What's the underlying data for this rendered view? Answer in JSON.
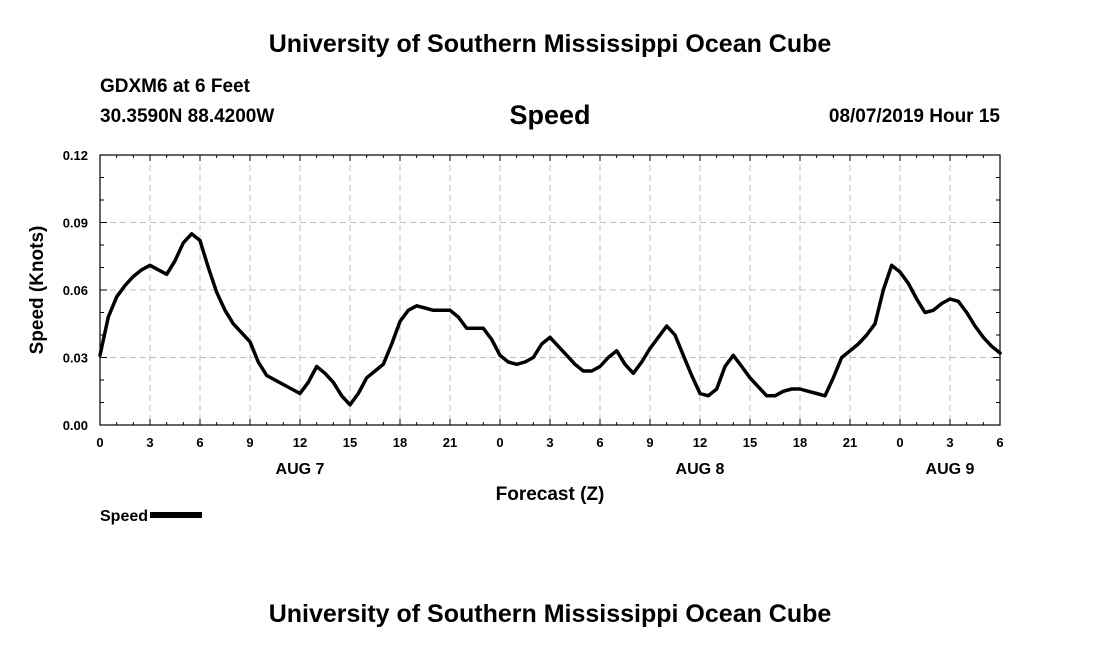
{
  "header": {
    "title": "University of Southern Mississippi Ocean Cube",
    "station": "GDXM6 at 6 Feet",
    "coords": "30.3590N 88.4200W",
    "datetime": "08/07/2019 Hour 15"
  },
  "footer": {
    "title": "University of Southern Mississippi Ocean Cube"
  },
  "legend": {
    "label": "Speed"
  },
  "chart_data": {
    "type": "line",
    "title": "Speed",
    "xlabel": "Forecast (Z)",
    "ylabel": "Speed (Knots)",
    "xlim": [
      0,
      54
    ],
    "ylim": [
      0,
      0.12
    ],
    "grid": true,
    "legend_position": "bottom-left",
    "yticks": [
      "0.00",
      "0.03",
      "0.06",
      "0.09",
      "0.12"
    ],
    "xticks": [
      "0",
      "3",
      "6",
      "9",
      "12",
      "15",
      "18",
      "21",
      "0",
      "3",
      "6",
      "9",
      "12",
      "15",
      "18",
      "21",
      "0",
      "3",
      "6"
    ],
    "day_labels": [
      {
        "label": "AUG 7",
        "x": 12
      },
      {
        "label": "AUG 8",
        "x": 36
      },
      {
        "label": "AUG 9",
        "x": 51
      }
    ],
    "series": [
      {
        "name": "Speed",
        "color": "#000000",
        "x": [
          0,
          0.5,
          1,
          1.5,
          2,
          2.5,
          3,
          3.5,
          4,
          4.5,
          5,
          5.5,
          6,
          6.5,
          7,
          7.5,
          8,
          8.5,
          9,
          9.5,
          10,
          11,
          12,
          12.5,
          13,
          13.5,
          14,
          14.5,
          15,
          15.5,
          16,
          16.5,
          17,
          17.5,
          18,
          18.5,
          19,
          19.5,
          20,
          20.5,
          21,
          21.5,
          22,
          22.5,
          23,
          23.5,
          24,
          24.5,
          25,
          25.5,
          26,
          26.5,
          27,
          27.5,
          28,
          28.5,
          29,
          29.5,
          30,
          30.5,
          31,
          31.5,
          32,
          32.5,
          33,
          33.5,
          34,
          34.5,
          35,
          35.5,
          36,
          36.5,
          37,
          37.5,
          38,
          38.5,
          39,
          39.5,
          40,
          40.5,
          41,
          41.5,
          42,
          42.5,
          43,
          43.5,
          44,
          44.5,
          45,
          45.5,
          46,
          46.5,
          47,
          47.5,
          48,
          48.5,
          49,
          49.5,
          50,
          50.5,
          51,
          51.5,
          52,
          52.5,
          53,
          53.5,
          54
        ],
        "values": [
          0.031,
          0.048,
          0.057,
          0.062,
          0.066,
          0.069,
          0.071,
          0.069,
          0.067,
          0.073,
          0.081,
          0.085,
          0.082,
          0.07,
          0.059,
          0.051,
          0.045,
          0.041,
          0.037,
          0.028,
          0.022,
          0.018,
          0.014,
          0.019,
          0.026,
          0.023,
          0.019,
          0.013,
          0.009,
          0.014,
          0.021,
          0.024,
          0.027,
          0.036,
          0.046,
          0.051,
          0.053,
          0.052,
          0.051,
          0.051,
          0.051,
          0.048,
          0.043,
          0.043,
          0.043,
          0.038,
          0.031,
          0.028,
          0.027,
          0.028,
          0.03,
          0.036,
          0.039,
          0.035,
          0.031,
          0.027,
          0.024,
          0.024,
          0.026,
          0.03,
          0.033,
          0.027,
          0.023,
          0.028,
          0.034,
          0.039,
          0.044,
          0.04,
          0.031,
          0.022,
          0.014,
          0.013,
          0.016,
          0.026,
          0.031,
          0.026,
          0.021,
          0.017,
          0.013,
          0.013,
          0.015,
          0.016,
          0.016,
          0.015,
          0.014,
          0.013,
          0.021,
          0.03,
          0.033,
          0.036,
          0.04,
          0.045,
          0.06,
          0.071,
          0.068,
          0.063,
          0.056,
          0.05,
          0.051,
          0.054,
          0.056,
          0.055,
          0.05,
          0.044,
          0.039,
          0.035,
          0.032
        ]
      }
    ]
  }
}
